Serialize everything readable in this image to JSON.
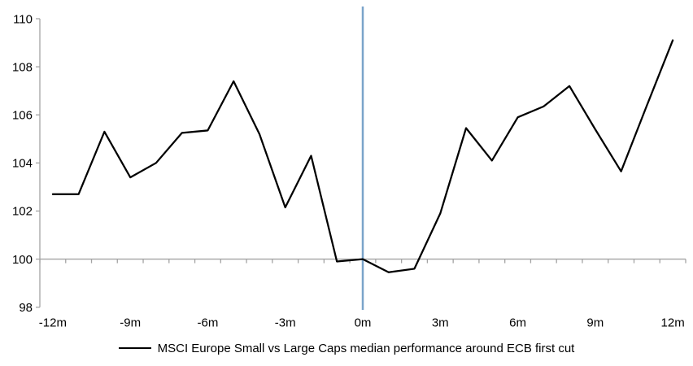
{
  "chart_data": {
    "type": "line",
    "title": "",
    "legend_position": "bottom",
    "x_unit": "months relative to ECB first cut",
    "categories": [
      -12,
      -11,
      -10,
      -9,
      -8,
      -7,
      -6,
      -5,
      -4,
      -3,
      -2,
      -1,
      0,
      1,
      2,
      3,
      4,
      5,
      6,
      7,
      8,
      9,
      10,
      11,
      12
    ],
    "x_tick_labels": [
      "-12m",
      "-9m",
      "-6m",
      "-3m",
      "0m",
      "3m",
      "6m",
      "9m",
      "12m"
    ],
    "x_label_step": 3,
    "series": [
      {
        "name": "MSCI Europe Small vs Large Caps median performance around ECB first cut",
        "color": "#000000",
        "values": [
          102.7,
          102.7,
          105.3,
          103.4,
          104.0,
          105.25,
          105.35,
          107.4,
          105.2,
          102.15,
          104.3,
          99.9,
          100.0,
          99.45,
          99.6,
          101.9,
          105.45,
          104.1,
          105.9,
          106.35,
          107.2,
          105.4,
          103.65,
          106.4,
          109.1
        ]
      }
    ],
    "ylim": [
      98,
      110
    ],
    "yticks": [
      98,
      100,
      102,
      104,
      106,
      108,
      110
    ],
    "baseline_value": 100,
    "event_line_x": 0,
    "grid": "baseline-only",
    "colors": {
      "series_line": "#000000",
      "event_line": "#7aa4ca",
      "axis_line": "#a3a3a3",
      "tick_line": "#a3a3a3",
      "label_text": "#000000",
      "background": "#ffffff"
    },
    "layout": {
      "plot_left": 49,
      "plot_right": 843,
      "plot_top": 23,
      "plot_bottom": 377.7,
      "event_line_top": 8,
      "event_line_bottom": 381,
      "x_label_y": 396,
      "tick_len": 5,
      "series_stroke_width": 2.25,
      "event_stroke_width": 2.5,
      "font_size": 15
    }
  },
  "legend": {
    "label": "MSCI Europe Small vs Large Caps median performance around ECB first cut"
  }
}
